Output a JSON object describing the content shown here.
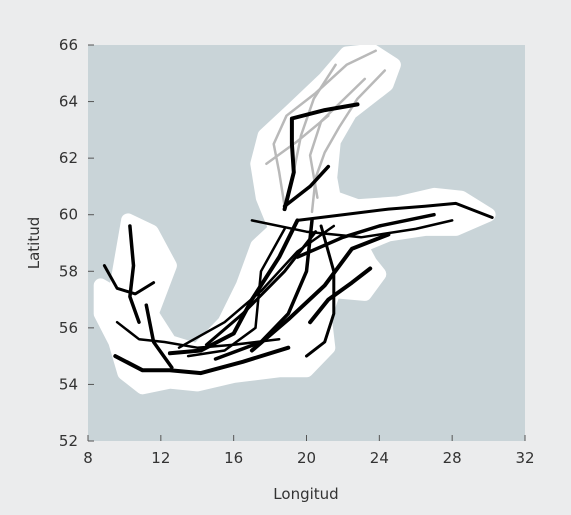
{
  "chart_data": {
    "type": "map",
    "xlabel": "Longitud",
    "ylabel": "Latitud",
    "xlim": [
      8,
      32
    ],
    "ylim": [
      52,
      66
    ],
    "xticks": [
      8,
      12,
      16,
      20,
      24,
      28,
      32
    ],
    "yticks": [
      52,
      54,
      56,
      58,
      60,
      62,
      64,
      66
    ],
    "grid": false,
    "colors": {
      "sea": "#c9d4d8",
      "coast": "#ffffff",
      "track_gray": "#b9b9b9",
      "track_black": "#000000"
    },
    "coastline": [
      [
        9.5,
        57.2
      ],
      [
        10.2,
        59.8
      ],
      [
        11.5,
        59.4
      ],
      [
        12.5,
        58.2
      ],
      [
        11.5,
        56.5
      ],
      [
        12.5,
        55.5
      ],
      [
        14,
        55.2
      ],
      [
        15.5,
        56.2
      ],
      [
        16.5,
        57.5
      ],
      [
        17.3,
        58.9
      ],
      [
        18.3,
        59.5
      ],
      [
        17.6,
        60.6
      ],
      [
        17.3,
        61.8
      ],
      [
        17.7,
        62.8
      ],
      [
        19.2,
        63.7
      ],
      [
        21,
        64.8
      ],
      [
        22.2,
        65.7
      ],
      [
        23.6,
        65.8
      ],
      [
        24.8,
        65.3
      ],
      [
        24.4,
        64.6
      ],
      [
        22.4,
        63.6
      ],
      [
        21.5,
        62.6
      ],
      [
        21.3,
        61.3
      ],
      [
        21.5,
        60.6
      ],
      [
        22.8,
        60.3
      ],
      [
        25,
        60.4
      ],
      [
        27,
        60.7
      ],
      [
        28.5,
        60.6
      ],
      [
        30,
        60
      ],
      [
        28.2,
        59.5
      ],
      [
        26.5,
        59.5
      ],
      [
        24.5,
        59.3
      ],
      [
        23,
        58.9
      ],
      [
        23.5,
        58.3
      ],
      [
        24,
        57.9
      ],
      [
        23.2,
        57.2
      ],
      [
        21.5,
        57.3
      ],
      [
        21,
        56.4
      ],
      [
        21.2,
        55.3
      ],
      [
        20,
        54.5
      ],
      [
        18.5,
        54.5
      ],
      [
        16,
        54.3
      ],
      [
        14,
        54
      ],
      [
        12.5,
        54.1
      ],
      [
        11,
        53.9
      ],
      [
        10,
        54.4
      ],
      [
        9.5,
        55.5
      ],
      [
        8.7,
        56.5
      ],
      [
        8.7,
        57.5
      ]
    ],
    "series": [
      {
        "color": "gray",
        "tracks": [
          [
            [
              18.8,
              60.3
            ],
            [
              18.5,
              61.5
            ],
            [
              18.2,
              62.5
            ],
            [
              18.9,
              63.5
            ],
            [
              20.5,
              64.3
            ],
            [
              22.2,
              65.3
            ],
            [
              23.8,
              65.8
            ]
          ],
          [
            [
              20.3,
              60.1
            ],
            [
              20.5,
              61.3
            ],
            [
              21,
              62.2
            ],
            [
              21.8,
              63.1
            ],
            [
              22.8,
              64.1
            ],
            [
              24.3,
              65.1
            ]
          ],
          [
            [
              17.8,
              61.8
            ],
            [
              19.5,
              62.6
            ],
            [
              21.2,
              63.5
            ]
          ],
          [
            [
              19.2,
              61.2
            ],
            [
              19.7,
              62.8
            ],
            [
              20.4,
              64.1
            ],
            [
              21.6,
              65.3
            ]
          ],
          [
            [
              20.6,
              60.6
            ],
            [
              20.2,
              62.1
            ],
            [
              20.8,
              63.3
            ],
            [
              23.2,
              64.8
            ]
          ]
        ]
      },
      {
        "color": "black",
        "tracks": [
          [
            [
              18.8,
              60.2
            ],
            [
              19.3,
              61.5
            ],
            [
              19.2,
              62.5
            ],
            [
              19.2,
              63.4
            ],
            [
              21,
              63.7
            ],
            [
              22.8,
              63.9
            ]
          ],
          [
            [
              18.8,
              60.3
            ],
            [
              20.2,
              61
            ],
            [
              21.2,
              61.7
            ]
          ],
          [
            [
              19.5,
              59.8
            ],
            [
              22,
              60
            ],
            [
              24.5,
              60.2
            ],
            [
              26.5,
              60.3
            ],
            [
              28.2,
              60.4
            ],
            [
              30.2,
              59.9
            ]
          ],
          [
            [
              17,
              59.8
            ],
            [
              20,
              59.4
            ],
            [
              23,
              59.2
            ],
            [
              26,
              59.5
            ],
            [
              28,
              59.8
            ]
          ],
          [
            [
              19.5,
              59.8
            ],
            [
              18.5,
              58.5
            ],
            [
              17,
              57
            ],
            [
              16,
              55.8
            ],
            [
              14.2,
              55.2
            ],
            [
              12.5,
              55.1
            ]
          ],
          [
            [
              20.3,
              59.8
            ],
            [
              20,
              58
            ],
            [
              19,
              56.5
            ],
            [
              17.5,
              55.5
            ],
            [
              15,
              54.9
            ]
          ],
          [
            [
              20.8,
              59.6
            ],
            [
              21.5,
              58
            ],
            [
              21.5,
              56.5
            ],
            [
              21,
              55.5
            ],
            [
              20,
              55
            ]
          ],
          [
            [
              18.8,
              59.5
            ],
            [
              17.5,
              58
            ],
            [
              17.2,
              56
            ],
            [
              15.5,
              55.2
            ],
            [
              13.5,
              55
            ]
          ],
          [
            [
              23.5,
              58.1
            ],
            [
              22.5,
              57.6
            ],
            [
              21.2,
              57
            ],
            [
              20.2,
              56.2
            ]
          ],
          [
            [
              10.3,
              59.6
            ],
            [
              10.5,
              58.2
            ],
            [
              10.3,
              57.1
            ],
            [
              10.8,
              56.2
            ]
          ],
          [
            [
              8.9,
              58.2
            ],
            [
              9.6,
              57.4
            ],
            [
              10.6,
              57.2
            ],
            [
              11.6,
              57.6
            ]
          ],
          [
            [
              9.6,
              56.2
            ],
            [
              10.8,
              55.6
            ],
            [
              12.2,
              55.5
            ],
            [
              14,
              55.3
            ],
            [
              16,
              55.4
            ],
            [
              18.5,
              55.6
            ]
          ],
          [
            [
              9.5,
              55
            ],
            [
              11,
              54.5
            ],
            [
              12.5,
              54.5
            ],
            [
              14.2,
              54.4
            ],
            [
              16.5,
              54.8
            ],
            [
              19,
              55.3
            ]
          ],
          [
            [
              11.2,
              56.8
            ],
            [
              11.6,
              55.5
            ],
            [
              12.6,
              54.6
            ]
          ],
          [
            [
              14.5,
              55.4
            ],
            [
              16.5,
              56.5
            ],
            [
              18.8,
              58
            ],
            [
              20.5,
              59.4
            ]
          ],
          [
            [
              13,
              55.3
            ],
            [
              15.5,
              56.2
            ],
            [
              17.5,
              57.3
            ],
            [
              19.5,
              58.7
            ],
            [
              21.5,
              59.6
            ]
          ],
          [
            [
              17,
              55.2
            ],
            [
              19,
              56.3
            ],
            [
              21,
              57.5
            ],
            [
              22.5,
              58.8
            ],
            [
              24.5,
              59.3
            ]
          ],
          [
            [
              19.5,
              58.5
            ],
            [
              22,
              59.2
            ],
            [
              24,
              59.6
            ],
            [
              27,
              60
            ]
          ]
        ]
      }
    ]
  }
}
